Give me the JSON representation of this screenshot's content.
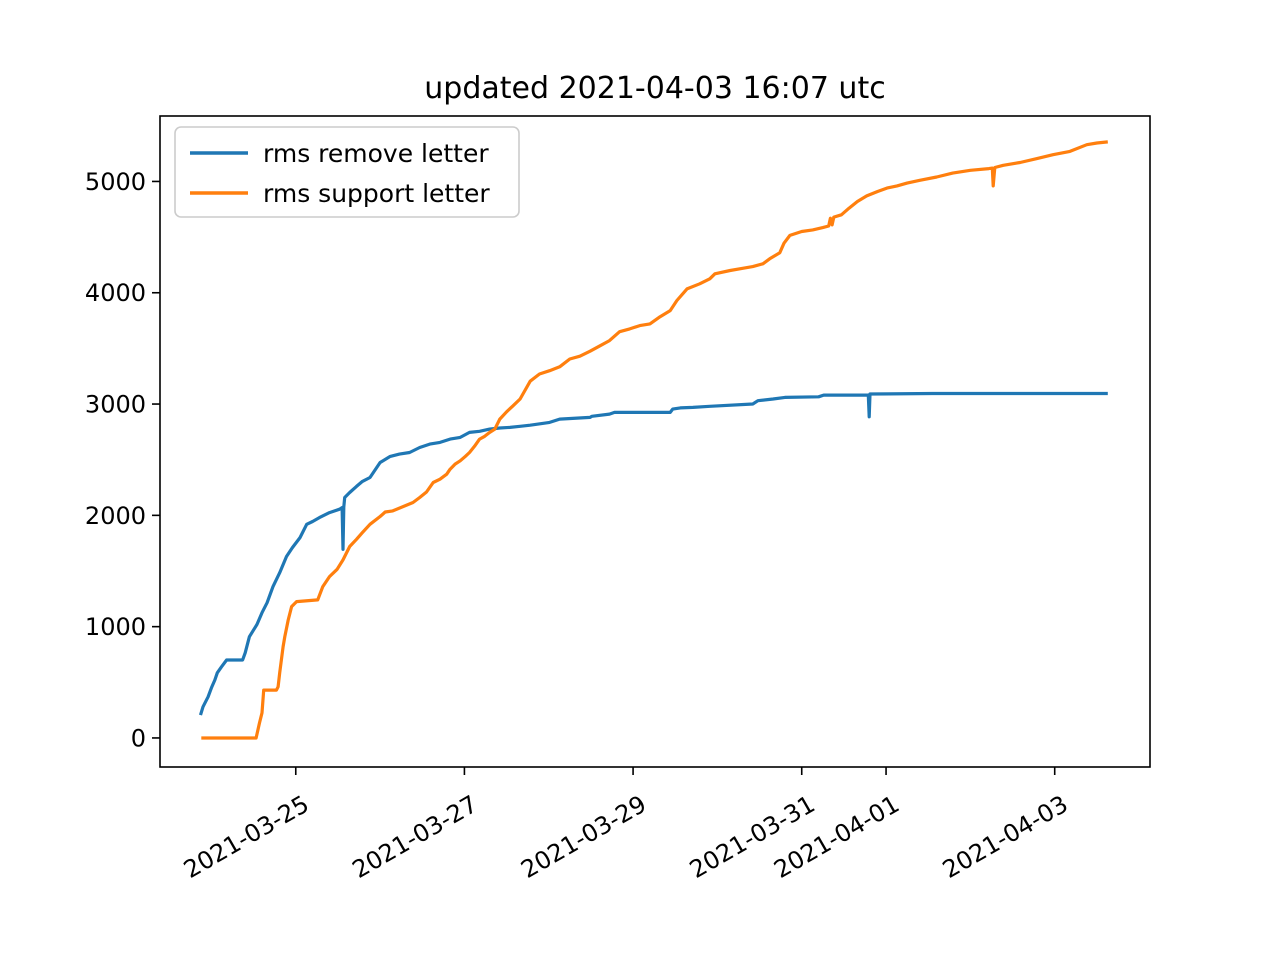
{
  "chart_data": {
    "type": "line",
    "title": "updated 2021-04-03 16:07 utc",
    "xlabel": "",
    "ylabel": "",
    "grid": false,
    "legend_position": "upper left",
    "x_unit": "days since 2021-03-23 00:00 utc",
    "xlim": [
      0.39,
      12.13
    ],
    "ylim": [
      -261,
      5588
    ],
    "y_ticks": [
      0,
      1000,
      2000,
      3000,
      4000,
      5000
    ],
    "x_ticks": [
      {
        "label": "2021-03-25",
        "d": 2
      },
      {
        "label": "2021-03-27",
        "d": 4
      },
      {
        "label": "2021-03-29",
        "d": 6
      },
      {
        "label": "2021-03-31",
        "d": 8
      },
      {
        "label": "2021-04-01",
        "d": 9
      },
      {
        "label": "2021-04-03",
        "d": 11
      }
    ],
    "series": [
      {
        "name": "rms remove letter",
        "color": "#1f77b4",
        "data": [
          [
            0.87,
            205
          ],
          [
            0.9,
            280
          ],
          [
            0.96,
            370
          ],
          [
            1.0,
            450
          ],
          [
            1.04,
            520
          ],
          [
            1.07,
            585
          ],
          [
            1.12,
            640
          ],
          [
            1.18,
            700
          ],
          [
            1.37,
            700
          ],
          [
            1.4,
            765
          ],
          [
            1.45,
            910
          ],
          [
            1.54,
            1020
          ],
          [
            1.6,
            1125
          ],
          [
            1.66,
            1215
          ],
          [
            1.73,
            1360
          ],
          [
            1.81,
            1485
          ],
          [
            1.89,
            1630
          ],
          [
            1.96,
            1710
          ],
          [
            2.05,
            1800
          ],
          [
            2.13,
            1920
          ],
          [
            2.2,
            1945
          ],
          [
            2.28,
            1980
          ],
          [
            2.4,
            2025
          ],
          [
            2.52,
            2055
          ],
          [
            2.55,
            2070
          ],
          [
            2.56,
            1695
          ],
          [
            2.57,
            2075
          ],
          [
            2.58,
            2160
          ],
          [
            2.64,
            2205
          ],
          [
            2.72,
            2260
          ],
          [
            2.79,
            2305
          ],
          [
            2.88,
            2340
          ],
          [
            3.0,
            2475
          ],
          [
            3.12,
            2530
          ],
          [
            3.23,
            2550
          ],
          [
            3.35,
            2565
          ],
          [
            3.47,
            2610
          ],
          [
            3.59,
            2640
          ],
          [
            3.71,
            2655
          ],
          [
            3.83,
            2685
          ],
          [
            3.95,
            2700
          ],
          [
            4.06,
            2745
          ],
          [
            4.18,
            2755
          ],
          [
            4.3,
            2775
          ],
          [
            4.42,
            2785
          ],
          [
            4.54,
            2790
          ],
          [
            4.66,
            2800
          ],
          [
            4.78,
            2810
          ],
          [
            5.01,
            2835
          ],
          [
            5.13,
            2865
          ],
          [
            5.49,
            2880
          ],
          [
            5.51,
            2890
          ],
          [
            5.72,
            2910
          ],
          [
            5.78,
            2925
          ],
          [
            6.44,
            2925
          ],
          [
            6.47,
            2955
          ],
          [
            6.56,
            2965
          ],
          [
            6.71,
            2970
          ],
          [
            6.91,
            2980
          ],
          [
            7.42,
            3000
          ],
          [
            7.48,
            3030
          ],
          [
            7.66,
            3045
          ],
          [
            7.8,
            3060
          ],
          [
            8.2,
            3065
          ],
          [
            8.26,
            3080
          ],
          [
            8.79,
            3080
          ],
          [
            8.8,
            2885
          ],
          [
            8.81,
            3090
          ],
          [
            9.55,
            3095
          ],
          [
            11.63,
            3095
          ]
        ]
      },
      {
        "name": "rms support letter",
        "color": "#ff7f0e",
        "data": [
          [
            0.88,
            0
          ],
          [
            1.53,
            0
          ],
          [
            1.57,
            135
          ],
          [
            1.6,
            225
          ],
          [
            1.62,
            430
          ],
          [
            1.77,
            430
          ],
          [
            1.79,
            460
          ],
          [
            1.81,
            585
          ],
          [
            1.85,
            820
          ],
          [
            1.87,
            910
          ],
          [
            1.91,
            1060
          ],
          [
            1.95,
            1180
          ],
          [
            2.01,
            1225
          ],
          [
            2.26,
            1240
          ],
          [
            2.32,
            1360
          ],
          [
            2.4,
            1450
          ],
          [
            2.49,
            1515
          ],
          [
            2.56,
            1600
          ],
          [
            2.64,
            1720
          ],
          [
            2.72,
            1785
          ],
          [
            2.79,
            1845
          ],
          [
            2.88,
            1920
          ],
          [
            3.0,
            1990
          ],
          [
            3.06,
            2030
          ],
          [
            3.15,
            2040
          ],
          [
            3.39,
            2115
          ],
          [
            3.47,
            2160
          ],
          [
            3.55,
            2210
          ],
          [
            3.63,
            2295
          ],
          [
            3.71,
            2325
          ],
          [
            3.79,
            2370
          ],
          [
            3.83,
            2415
          ],
          [
            3.89,
            2460
          ],
          [
            3.95,
            2490
          ],
          [
            4.01,
            2530
          ],
          [
            4.06,
            2565
          ],
          [
            4.12,
            2620
          ],
          [
            4.18,
            2685
          ],
          [
            4.24,
            2710
          ],
          [
            4.3,
            2745
          ],
          [
            4.36,
            2775
          ],
          [
            4.42,
            2865
          ],
          [
            4.5,
            2930
          ],
          [
            4.57,
            2980
          ],
          [
            4.66,
            3045
          ],
          [
            4.78,
            3205
          ],
          [
            4.89,
            3270
          ],
          [
            5.01,
            3300
          ],
          [
            5.13,
            3335
          ],
          [
            5.25,
            3405
          ],
          [
            5.37,
            3430
          ],
          [
            5.49,
            3475
          ],
          [
            5.6,
            3520
          ],
          [
            5.72,
            3570
          ],
          [
            5.84,
            3650
          ],
          [
            5.96,
            3675
          ],
          [
            6.08,
            3705
          ],
          [
            6.2,
            3720
          ],
          [
            6.32,
            3785
          ],
          [
            6.44,
            3840
          ],
          [
            6.52,
            3930
          ],
          [
            6.64,
            4035
          ],
          [
            6.79,
            4080
          ],
          [
            6.91,
            4125
          ],
          [
            6.97,
            4170
          ],
          [
            7.15,
            4200
          ],
          [
            7.3,
            4220
          ],
          [
            7.42,
            4235
          ],
          [
            7.54,
            4260
          ],
          [
            7.62,
            4305
          ],
          [
            7.74,
            4360
          ],
          [
            7.79,
            4445
          ],
          [
            7.86,
            4515
          ],
          [
            8.0,
            4550
          ],
          [
            8.13,
            4565
          ],
          [
            8.25,
            4585
          ],
          [
            8.32,
            4600
          ],
          [
            8.34,
            4670
          ],
          [
            8.36,
            4610
          ],
          [
            8.38,
            4680
          ],
          [
            8.47,
            4700
          ],
          [
            8.56,
            4760
          ],
          [
            8.66,
            4820
          ],
          [
            8.77,
            4870
          ],
          [
            8.9,
            4910
          ],
          [
            9.01,
            4940
          ],
          [
            9.13,
            4960
          ],
          [
            9.25,
            4985
          ],
          [
            9.4,
            5010
          ],
          [
            9.6,
            5040
          ],
          [
            9.79,
            5075
          ],
          [
            10.0,
            5100
          ],
          [
            10.22,
            5115
          ],
          [
            10.26,
            5120
          ],
          [
            10.27,
            4960
          ],
          [
            10.29,
            5125
          ],
          [
            10.39,
            5145
          ],
          [
            10.59,
            5170
          ],
          [
            10.79,
            5205
          ],
          [
            10.98,
            5240
          ],
          [
            11.18,
            5270
          ],
          [
            11.38,
            5330
          ],
          [
            11.5,
            5345
          ],
          [
            11.63,
            5355
          ]
        ]
      }
    ]
  }
}
